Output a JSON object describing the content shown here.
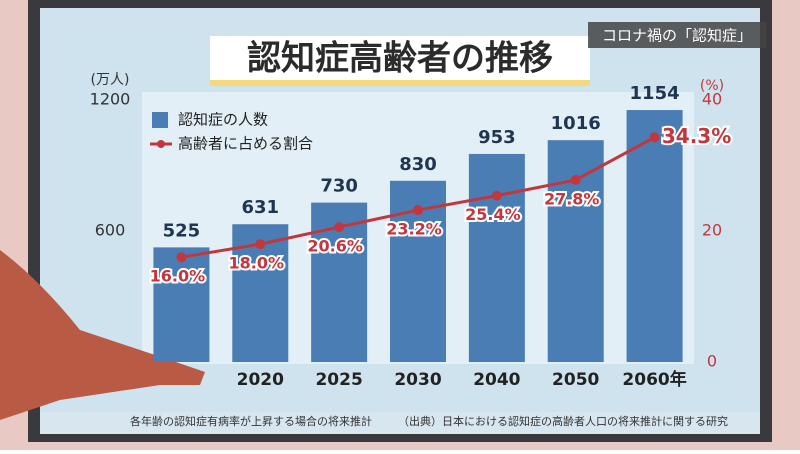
{
  "caption": "コロナ禍の「認知症」",
  "footnotes": [
    "各年齢の認知症有病率が上昇する場合の将来推計",
    "（出典）日本における認知症の高齢者人口の将来推計に関する研究"
  ],
  "chart_data": {
    "type": "bar",
    "title": "認知症高齢者の推移",
    "y_label": "(万人)",
    "y2_label": "(%)",
    "categories": [
      null,
      "2020",
      "2025",
      "2030",
      "2040",
      "2050",
      "2060年"
    ],
    "series": [
      {
        "name": "認知症の人数",
        "color": "#4a7db4",
        "values": [
          525,
          631,
          730,
          830,
          953,
          1016,
          1154
        ]
      },
      {
        "name": "高齢者に占める割合",
        "color": "#c2373d",
        "type": "line",
        "axis": "y2",
        "values": [
          16.0,
          18.0,
          20.6,
          23.2,
          25.4,
          27.8,
          34.3
        ],
        "value_labels": [
          "16.0%",
          "18.0%",
          "20.6%",
          "23.2%",
          "25.4%",
          "27.8%",
          "34.3%"
        ]
      }
    ],
    "ylim": [
      0,
      1200
    ],
    "yticks": [
      600,
      1200
    ],
    "y2lim": [
      0,
      40
    ],
    "y2ticks": [
      0,
      20,
      40
    ]
  }
}
